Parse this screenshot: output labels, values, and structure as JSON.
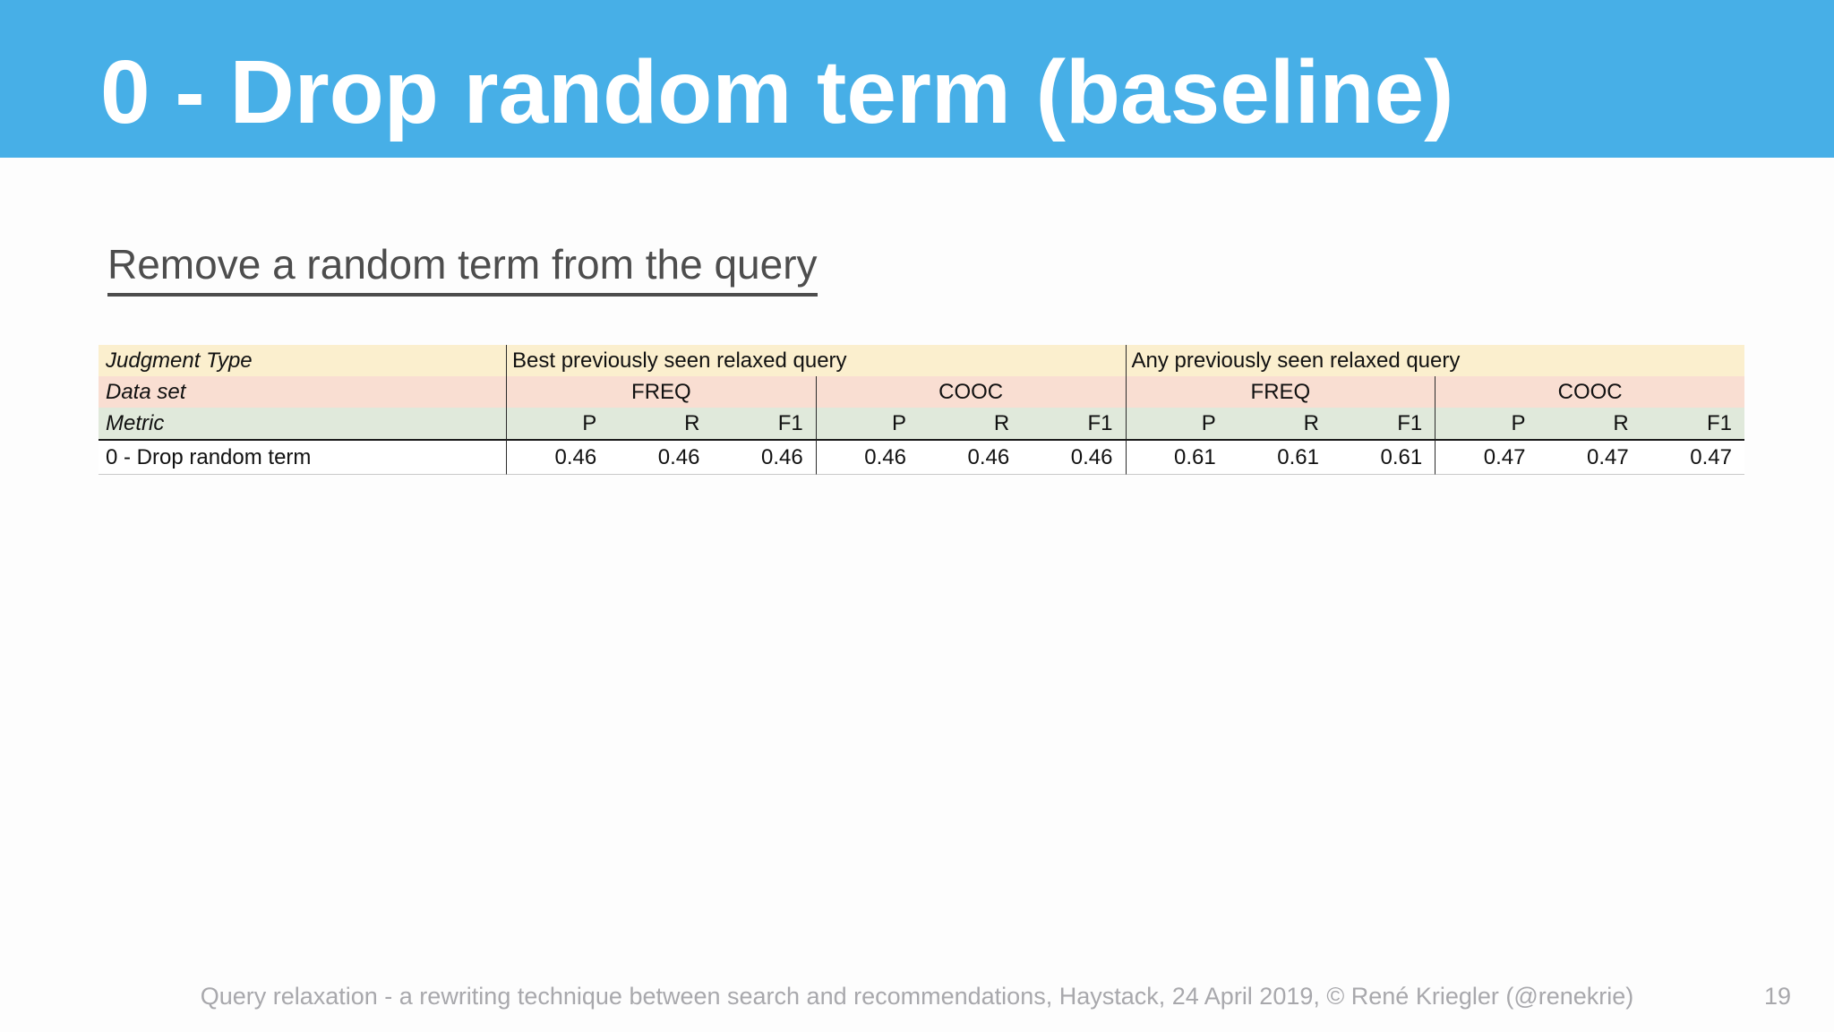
{
  "slide": {
    "title": "0 - Drop random term (baseline)",
    "subtitle": "Remove a random term from the query",
    "footer": "Query relaxation - a rewriting technique between search and recommendations, Haystack, 24 April 2019, © René Kriegler (@renekrie)",
    "page_number": "19"
  },
  "colors": {
    "header_blue": "#47AFE7",
    "row_judgment": "#FBEFCE",
    "row_dataset": "#F9DED2",
    "row_metric": "#E0E9DB",
    "table_border": "#2b2b2b",
    "subtitle_gray": "#4d4d4d",
    "footer_gray": "#a8a8ac"
  },
  "table": {
    "row_labels": {
      "judgment_type": "Judgment Type",
      "data_set": "Data set",
      "metric": "Metric"
    },
    "groups": [
      {
        "label": "Best previously seen relaxed query",
        "datasets": [
          "FREQ",
          "COOC"
        ]
      },
      {
        "label": "Any previously seen relaxed query",
        "datasets": [
          "FREQ",
          "COOC"
        ]
      }
    ],
    "metrics": [
      "P",
      "R",
      "F1"
    ],
    "data_row": {
      "label": "0 - Drop random term",
      "values": {
        "best_freq": [
          "0.46",
          "0.46",
          "0.46"
        ],
        "best_cooc": [
          "0.46",
          "0.46",
          "0.46"
        ],
        "any_freq": [
          "0.61",
          "0.61",
          "0.61"
        ],
        "any_cooc": [
          "0.47",
          "0.47",
          "0.47"
        ]
      }
    }
  },
  "chart_data": {
    "type": "table",
    "title": "0 - Drop random term (baseline)",
    "columns": [
      "Judgment Type",
      "Best FREQ P",
      "Best FREQ R",
      "Best FREQ F1",
      "Best COOC P",
      "Best COOC R",
      "Best COOC F1",
      "Any FREQ P",
      "Any FREQ R",
      "Any FREQ F1",
      "Any COOC P",
      "Any COOC R",
      "Any COOC F1"
    ],
    "rows": [
      [
        "0 - Drop random term",
        0.46,
        0.46,
        0.46,
        0.46,
        0.46,
        0.46,
        0.61,
        0.61,
        0.61,
        0.47,
        0.47,
        0.47
      ]
    ]
  }
}
